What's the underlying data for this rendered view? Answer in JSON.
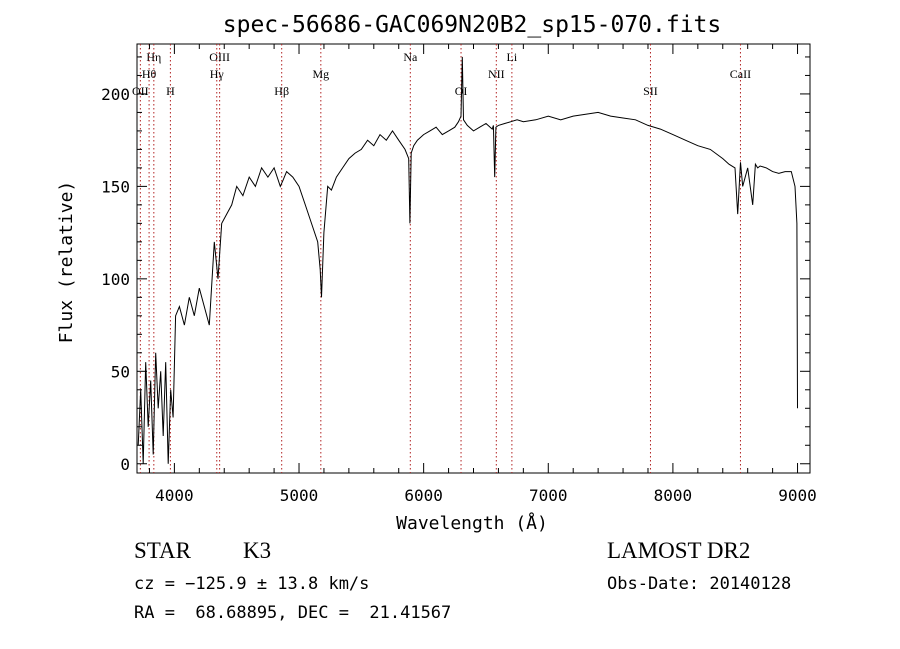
{
  "chart_data": {
    "type": "line",
    "title": "spec-56686-GAC069N20B2_sp15-070.fits",
    "xlabel": "Wavelength (Å)",
    "ylabel": "Flux (relative)",
    "xlim": [
      3700,
      9100
    ],
    "ylim": [
      -5,
      227
    ],
    "xticks": [
      4000,
      5000,
      6000,
      7000,
      8000,
      9000
    ],
    "yticks": [
      0,
      50,
      100,
      150,
      200
    ],
    "grid": false,
    "line_color": "#000000",
    "marker_color": "#b22222",
    "series": [
      {
        "x": [
          3710,
          3730,
          3750,
          3770,
          3790,
          3810,
          3830,
          3850,
          3870,
          3890,
          3910,
          3930,
          3950,
          3970,
          3990,
          4010,
          4040,
          4080,
          4120,
          4160,
          4200,
          4240,
          4280,
          4320,
          4350,
          4380,
          4420,
          4460,
          4500,
          4550,
          4600,
          4650,
          4700,
          4750,
          4800,
          4850,
          4870,
          4900,
          4950,
          5000,
          5050,
          5100,
          5150,
          5170,
          5180,
          5200,
          5230,
          5260,
          5300,
          5350,
          5400,
          5450,
          5500,
          5550,
          5600,
          5650,
          5700,
          5750,
          5800,
          5850,
          5880,
          5890,
          5900,
          5920,
          5950,
          6000,
          6050,
          6100,
          6150,
          6200,
          6250,
          6280,
          6300,
          6310,
          6320,
          6350,
          6400,
          6450,
          6500,
          6550,
          6560,
          6570,
          6580,
          6600,
          6650,
          6700,
          6750,
          6800,
          6900,
          7000,
          7100,
          7200,
          7300,
          7400,
          7500,
          7600,
          7700,
          7800,
          7900,
          8000,
          8100,
          8200,
          8300,
          8400,
          8450,
          8498,
          8520,
          8542,
          8560,
          8600,
          8640,
          8662,
          8680,
          8700,
          8750,
          8800,
          8850,
          8900,
          8950,
          8980,
          8995,
          9000
        ],
        "y": [
          10,
          40,
          0,
          55,
          20,
          45,
          5,
          60,
          30,
          50,
          15,
          55,
          0,
          40,
          25,
          80,
          85,
          75,
          90,
          80,
          95,
          85,
          75,
          120,
          100,
          130,
          135,
          140,
          150,
          145,
          155,
          150,
          160,
          155,
          160,
          150,
          153,
          158,
          155,
          150,
          140,
          130,
          120,
          105,
          90,
          125,
          150,
          148,
          155,
          160,
          165,
          168,
          170,
          175,
          172,
          178,
          175,
          180,
          175,
          170,
          165,
          130,
          168,
          172,
          175,
          178,
          180,
          182,
          178,
          180,
          182,
          185,
          188,
          220,
          186,
          183,
          180,
          182,
          184,
          181,
          183,
          155,
          182,
          183,
          184,
          185,
          186,
          185,
          186,
          188,
          186,
          188,
          189,
          190,
          188,
          187,
          186,
          183,
          181,
          178,
          175,
          172,
          170,
          165,
          162,
          160,
          135,
          163,
          150,
          160,
          140,
          162,
          160,
          161,
          160,
          158,
          157,
          158,
          158,
          150,
          130,
          30
        ]
      }
    ],
    "line_markers": [
      {
        "label": "Hη",
        "x": 3835,
        "row": 1
      },
      {
        "label": "Hθ",
        "x": 3797,
        "row": 2
      },
      {
        "label": "OII",
        "x": 3727,
        "row": 3
      },
      {
        "label": "H",
        "x": 3968,
        "row": 3
      },
      {
        "label": "OIII",
        "x": 4363,
        "row": 1
      },
      {
        "label": "Hγ",
        "x": 4340,
        "row": 2
      },
      {
        "label": "Hβ",
        "x": 4861,
        "row": 3
      },
      {
        "label": "Mg",
        "x": 5175,
        "row": 2
      },
      {
        "label": "Na",
        "x": 5893,
        "row": 1
      },
      {
        "label": "OI",
        "x": 6300,
        "row": 3
      },
      {
        "label": "NII",
        "x": 6583,
        "row": 2
      },
      {
        "label": "Li",
        "x": 6708,
        "row": 1
      },
      {
        "label": "SII",
        "x": 7820,
        "row": 3
      },
      {
        "label": "CaII",
        "x": 8542,
        "row": 2
      }
    ]
  },
  "info": {
    "class_label": "STAR",
    "subclass_label": "K3",
    "survey": "LAMOST DR2",
    "redshift_line": "cz = −125.9 ± 13.8 km/s",
    "obs_date_line": "Obs-Date: 20140128",
    "coords_line": "RA =  68.68895, DEC =  21.41567"
  }
}
